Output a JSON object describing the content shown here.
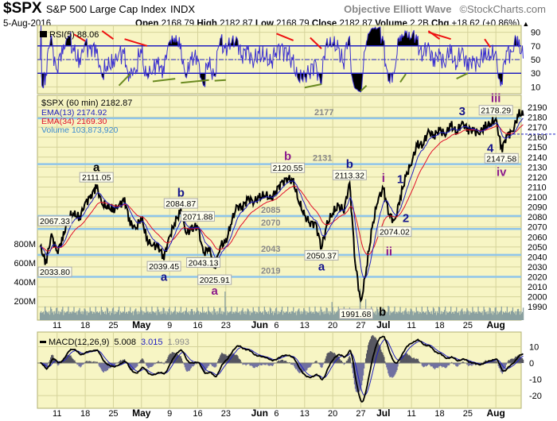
{
  "header": {
    "symbol": "$SPX",
    "name": "S&P 500 Large Cap Index",
    "exchange": "INDX",
    "annotator": "Objective Elliott Wave",
    "copyright": "©StockCharts.com",
    "date": "5-Aug-2016",
    "open_label": "Open",
    "open": "2168.79",
    "high_label": "High",
    "high": "2182.87",
    "low_label": "Low",
    "low": "2168.79",
    "close_label": "Close",
    "close": "2182.87",
    "volume_label": "Volume",
    "volume": "2.2B",
    "chg_label": "Chg",
    "chg": "+18.62 (+0.86%)",
    "chg_arrow": "▲"
  },
  "colors": {
    "background": "#f7f5c4",
    "grid": "#d5d39a",
    "levels": "#8fc5ea",
    "price": "#000000",
    "ema13": "#2020c0",
    "ema34": "#e0102a",
    "volume": "#8aa0a0",
    "rsi": "#3a2fd0",
    "macd_signal": "#2020c0",
    "hist": "#555560",
    "navy": "#16168c",
    "purple": "#8b1a8b",
    "trend_red": "#ee1111",
    "trend_green": "#6a8a20"
  },
  "chart_data": [
    {
      "panel": "rsi",
      "type": "line",
      "title": "RSI(5) 88.06",
      "yticks": [
        10,
        30,
        50,
        70,
        90
      ],
      "ylim": [
        0,
        100
      ],
      "overbought": 70,
      "oversold": 30,
      "midline": 50,
      "trendlines_red": [
        [
          "2016-04-14",
          87,
          "2016-04-18",
          77
        ],
        [
          "2016-04-21",
          92,
          "2016-04-25",
          80
        ],
        [
          "2016-04-27",
          80,
          "2016-05-03",
          70
        ],
        [
          "2016-06-06",
          88,
          "2016-06-09",
          78
        ],
        [
          "2016-06-14",
          82,
          "2016-06-16",
          66
        ],
        [
          "2016-07-14",
          92,
          "2016-07-18",
          80
        ],
        [
          "2016-07-14",
          90,
          "2016-07-20",
          80
        ],
        [
          "2016-07-28",
          80,
          "2016-07-29",
          68
        ]
      ],
      "trendlines_green": [
        [
          "2016-04-26",
          12,
          "2016-04-28",
          29
        ],
        [
          "2016-05-04",
          18,
          "2016-05-10",
          22
        ],
        [
          "2016-05-11",
          16,
          "2016-05-18",
          20
        ],
        [
          "2016-05-19",
          19,
          "2016-05-23",
          20
        ],
        [
          "2016-06-13",
          9,
          "2016-06-16",
          14
        ],
        [
          "2016-06-27",
          4,
          "2016-06-28",
          12
        ],
        [
          "2016-07-07",
          17,
          "2016-07-08",
          29
        ],
        [
          "2016-07-21",
          22,
          "2016-07-25",
          30
        ]
      ]
    },
    {
      "panel": "price",
      "type": "line",
      "title": "$SPX (60 min) 2182.87",
      "legend": [
        "EMA(13) 2174.92",
        "EMA(34) 2169.30",
        "Volume 103,873,920"
      ],
      "ylim": [
        1980,
        2195
      ],
      "yticks": [
        1990,
        2000,
        2010,
        2020,
        2030,
        2040,
        2050,
        2060,
        2070,
        2080,
        2090,
        2100,
        2110,
        2120,
        2130,
        2140,
        2150,
        2160,
        2170,
        2180,
        2190
      ],
      "volume_ticks": [
        "200M",
        "400M",
        "600M",
        "800M"
      ],
      "volume_tick_values": [
        200,
        400,
        600,
        800
      ],
      "volume_base_millions": 95,
      "volume_spikes_millions": {
        "2016-04-29": 140,
        "2016-05-20": 300,
        "2016-06-17": 190,
        "2016-06-24": 330,
        "2016-06-27": 220,
        "2016-07-01": 150,
        "2016-07-15": 140,
        "2016-07-29": 130
      },
      "levels": [
        {
          "value": 2179,
          "label": "2177"
        },
        {
          "value": 2133,
          "label": "2131"
        },
        {
          "value": 2081,
          "label": "2085"
        },
        {
          "value": 2068,
          "label": "2070"
        },
        {
          "value": 2042,
          "label": "2043"
        },
        {
          "value": 2020,
          "label": "2019"
        }
      ],
      "x_ticks": [
        [
          "2016-04-11",
          "11"
        ],
        [
          "2016-04-18",
          "18"
        ],
        [
          "2016-04-25",
          "25"
        ],
        [
          "2016-05-02",
          "May"
        ],
        [
          "2016-05-09",
          "9"
        ],
        [
          "2016-05-16",
          "16"
        ],
        [
          "2016-05-23",
          "23"
        ],
        [
          "2016-06-01",
          "Jun"
        ],
        [
          "2016-06-06",
          "6"
        ],
        [
          "2016-06-13",
          "13"
        ],
        [
          "2016-06-20",
          "20"
        ],
        [
          "2016-06-27",
          "27"
        ],
        [
          "2016-07-01",
          "Jul"
        ],
        [
          "2016-07-11",
          "11"
        ],
        [
          "2016-07-18",
          "18"
        ],
        [
          "2016-07-25",
          "25"
        ],
        [
          "2016-08-01",
          "Aug"
        ]
      ],
      "holidays": [
        "2016-05-30",
        "2016-07-04"
      ],
      "start": "2016-04-06",
      "end": "2016-08-05",
      "prices": [
        [
          "2016-04-06",
          2050
        ],
        [
          "2016-04-07",
          2034
        ],
        [
          "2016-04-08",
          2062
        ],
        [
          "2016-04-11",
          2045
        ],
        [
          "2016-04-12",
          2058
        ],
        [
          "2016-04-13",
          2080
        ],
        [
          "2016-04-14",
          2083
        ],
        [
          "2016-04-15",
          2079
        ],
        [
          "2016-04-18",
          2094
        ],
        [
          "2016-04-19",
          2101
        ],
        [
          "2016-04-20",
          2111
        ],
        [
          "2016-04-21",
          2093
        ],
        [
          "2016-04-22",
          2090
        ],
        [
          "2016-04-25",
          2087
        ],
        [
          "2016-04-26",
          2092
        ],
        [
          "2016-04-27",
          2097
        ],
        [
          "2016-04-28",
          2074
        ],
        [
          "2016-04-29",
          2068
        ],
        [
          "2016-05-02",
          2080
        ],
        [
          "2016-05-03",
          2056
        ],
        [
          "2016-05-04",
          2052
        ],
        [
          "2016-05-05",
          2050
        ],
        [
          "2016-05-06",
          2040
        ],
        [
          "2016-05-09",
          2060
        ],
        [
          "2016-05-10",
          2076
        ],
        [
          "2016-05-11",
          2085
        ],
        [
          "2016-05-12",
          2064
        ],
        [
          "2016-05-13",
          2068
        ],
        [
          "2016-05-16",
          2072
        ],
        [
          "2016-05-17",
          2043
        ],
        [
          "2016-05-18",
          2050
        ],
        [
          "2016-05-19",
          2026
        ],
        [
          "2016-05-20",
          2052
        ],
        [
          "2016-05-23",
          2054
        ],
        [
          "2016-05-24",
          2076
        ],
        [
          "2016-05-25",
          2090
        ],
        [
          "2016-05-26",
          2091
        ],
        [
          "2016-05-27",
          2098
        ],
        [
          "2016-05-31",
          2096
        ],
        [
          "2016-06-01",
          2099
        ],
        [
          "2016-06-02",
          2103
        ],
        [
          "2016-06-03",
          2097
        ],
        [
          "2016-06-06",
          2108
        ],
        [
          "2016-06-07",
          2114
        ],
        [
          "2016-06-08",
          2120
        ],
        [
          "2016-06-09",
          2114
        ],
        [
          "2016-06-10",
          2096
        ],
        [
          "2016-06-13",
          2080
        ],
        [
          "2016-06-14",
          2075
        ],
        [
          "2016-06-15",
          2072
        ],
        [
          "2016-06-16",
          2050
        ],
        [
          "2016-06-17",
          2072
        ],
        [
          "2016-06-20",
          2085
        ],
        [
          "2016-06-21",
          2090
        ],
        [
          "2016-06-22",
          2088
        ],
        [
          "2016-06-23",
          2113
        ],
        [
          "2016-06-24",
          2035
        ],
        [
          "2016-06-27",
          1992
        ],
        [
          "2016-06-28",
          2030
        ],
        [
          "2016-06-29",
          2068
        ],
        [
          "2016-06-30",
          2098
        ],
        [
          "2016-07-01",
          2108
        ],
        [
          "2016-07-05",
          2084
        ],
        [
          "2016-07-06",
          2074
        ],
        [
          "2016-07-07",
          2100
        ],
        [
          "2016-07-08",
          2120
        ],
        [
          "2016-07-11",
          2135
        ],
        [
          "2016-07-12",
          2152
        ],
        [
          "2016-07-13",
          2153
        ],
        [
          "2016-07-14",
          2165
        ],
        [
          "2016-07-15",
          2162
        ],
        [
          "2016-07-18",
          2167
        ],
        [
          "2016-07-19",
          2163
        ],
        [
          "2016-07-20",
          2172
        ],
        [
          "2016-07-21",
          2165
        ],
        [
          "2016-07-22",
          2174
        ],
        [
          "2016-07-25",
          2168
        ],
        [
          "2016-07-26",
          2167
        ],
        [
          "2016-07-27",
          2164
        ],
        [
          "2016-07-28",
          2170
        ],
        [
          "2016-07-29",
          2173
        ],
        [
          "2016-08-01",
          2178
        ],
        [
          "2016-08-02",
          2148
        ],
        [
          "2016-08-03",
          2162
        ],
        [
          "2016-08-04",
          2166
        ],
        [
          "2016-08-05",
          2183
        ]
      ],
      "price_annotations": [
        {
          "date": "2016-04-06",
          "value": "2067.33",
          "price": 2067.33,
          "pos": "above"
        },
        {
          "date": "2016-04-07",
          "value": "2033.80",
          "price": 2033.8,
          "pos": "below"
        },
        {
          "date": "2016-04-20",
          "value": "2111.05",
          "price": 2111.05,
          "pos": "above"
        },
        {
          "date": "2016-05-06",
          "value": "2039.45",
          "price": 2039.45,
          "pos": "below"
        },
        {
          "date": "2016-05-11",
          "value": "2084.87",
          "price": 2084.87,
          "pos": "above"
        },
        {
          "date": "2016-05-16",
          "value": "2071.88",
          "price": 2071.88,
          "pos": "above"
        },
        {
          "date": "2016-05-17",
          "value": "2043.13",
          "price": 2043.13,
          "pos": "below"
        },
        {
          "date": "2016-05-19",
          "value": "2025.91",
          "price": 2025.91,
          "pos": "below"
        },
        {
          "date": "2016-06-08",
          "value": "2120.55",
          "price": 2120.55,
          "pos": "above"
        },
        {
          "date": "2016-06-16",
          "value": "2050.37",
          "price": 2050.37,
          "pos": "below"
        },
        {
          "date": "2016-06-23",
          "value": "2113.32",
          "price": 2113.32,
          "pos": "above"
        },
        {
          "date": "2016-06-27",
          "value": "1991.68",
          "price": 1991.68,
          "pos": "below"
        },
        {
          "date": "2016-07-06",
          "value": "2074.02",
          "price": 2074.02,
          "pos": "below"
        },
        {
          "date": "2016-08-01",
          "value": "2178.29",
          "price": 2178.29,
          "pos": "above"
        },
        {
          "date": "2016-08-02",
          "value": "2147.58",
          "price": 2147.58,
          "pos": "below"
        }
      ],
      "wave_labels": [
        {
          "date": "2016-04-20",
          "price": 2126,
          "text": "a",
          "color": "black"
        },
        {
          "date": "2016-05-11",
          "price": 2098,
          "text": "b",
          "color": "navy"
        },
        {
          "date": "2016-05-06",
          "price": 2016,
          "text": "a",
          "color": "navy"
        },
        {
          "date": "2016-05-19",
          "price": 2005,
          "text": "a",
          "color": "purple"
        },
        {
          "date": "2016-06-08",
          "price": 2137,
          "text": "b",
          "color": "purple"
        },
        {
          "date": "2016-06-23",
          "price": 2129,
          "text": "b",
          "color": "navy"
        },
        {
          "date": "2016-06-16",
          "price": 2031,
          "text": "a",
          "color": "navy"
        },
        {
          "date": "2016-07-01",
          "price": 2115,
          "text": "i",
          "color": "purple"
        },
        {
          "date": "2016-07-07",
          "price": 2114,
          "text": "1",
          "color": "navy"
        },
        {
          "date": "2016-07-08",
          "price": 2075,
          "text": "2",
          "color": "navy"
        },
        {
          "date": "2016-07-05",
          "price": 2051,
          "text": "ii",
          "color": "purple"
        },
        {
          "date": "2016-06-30",
          "price": 1981,
          "text": "b",
          "color": "black"
        },
        {
          "date": "2016-07-22",
          "price": 2182,
          "text": "3",
          "color": "navy"
        },
        {
          "date": "2016-07-29",
          "price": 2145,
          "text": "4",
          "color": "navy"
        },
        {
          "date": "2016-08-01",
          "price": 2195,
          "text": "iii",
          "color": "purple"
        },
        {
          "date": "2016-08-02",
          "price": 2121,
          "text": "iv",
          "color": "purple"
        }
      ]
    },
    {
      "panel": "macd",
      "type": "line",
      "title": "MACD(12,26,9)",
      "values": [
        "5.008",
        "3.015",
        "1.993"
      ],
      "yticks": [
        -20,
        -10,
        0,
        10
      ],
      "ylim": [
        -27,
        18
      ]
    }
  ]
}
